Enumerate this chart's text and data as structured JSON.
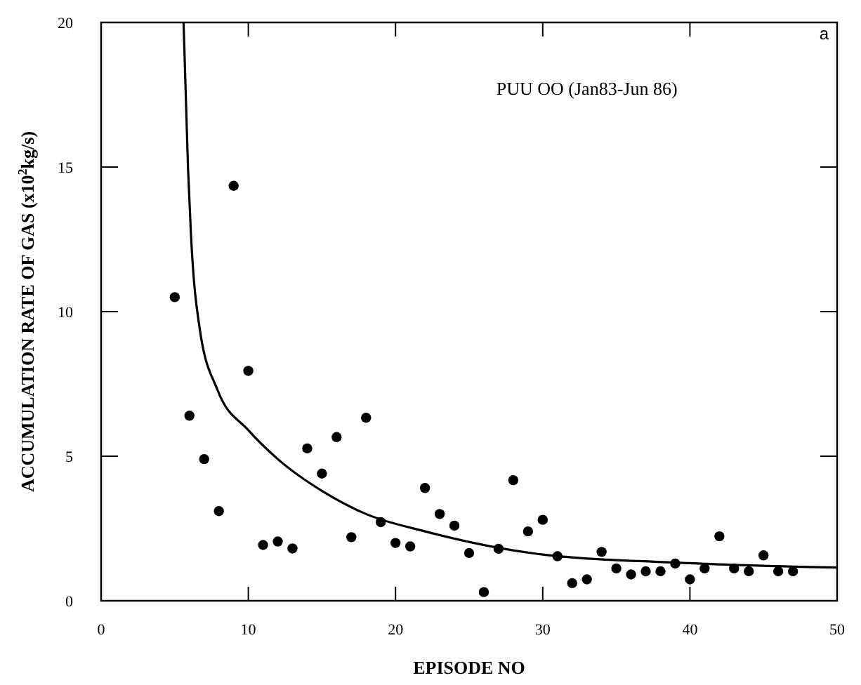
{
  "chart_data": {
    "type": "scatter",
    "xlabel": "EPISODE NO",
    "ylabel": "ACCUMULATION RATE OF GAS (x10$^{2}$kg/s)",
    "annotations": [
      "PUU OO (Jan83-Jun 86)",
      "a"
    ],
    "xlim": [
      0,
      50
    ],
    "xticks": [
      0,
      10,
      20,
      30,
      40,
      50
    ],
    "ylim": [
      0,
      20
    ],
    "yticks": [
      0,
      5,
      10,
      15,
      20
    ],
    "grid": false,
    "marker": "circle",
    "series": [
      {
        "color": "#000000",
        "x": [
          5,
          6,
          7,
          8,
          9,
          10,
          11,
          12,
          13,
          14,
          15,
          16,
          17,
          18,
          19,
          20,
          21,
          22,
          23,
          24,
          25,
          26,
          27,
          28,
          29,
          30,
          31,
          32,
          33,
          34,
          35,
          36,
          37,
          38,
          39,
          40,
          41,
          42,
          43,
          44,
          45,
          46,
          47
        ],
        "values": [
          10.5,
          6.4,
          4.9,
          3.1,
          14.35,
          7.95,
          1.93,
          2.05,
          1.81,
          5.27,
          4.4,
          5.66,
          2.2,
          6.33,
          2.72,
          2.0,
          1.88,
          3.9,
          3.0,
          2.6,
          1.65,
          0.3,
          1.8,
          4.17,
          2.4,
          2.8,
          1.54,
          0.61,
          0.74,
          1.69,
          1.12,
          0.91,
          1.02,
          1.02,
          1.29,
          0.74,
          1.12,
          2.23,
          1.12,
          1.02,
          1.57,
          1.02,
          1.02
        ]
      },
      {
        "type": "line",
        "color": "#000000",
        "line_style": "solid",
        "marker": "none",
        "x": [
          5.6,
          5.9,
          6.1,
          6.7,
          7.9,
          10,
          12,
          15,
          18,
          22,
          30,
          40,
          50
        ],
        "values": [
          20,
          15,
          12.7,
          9.4,
          7.3,
          5.9,
          4.9,
          3.8,
          3.0,
          2.4,
          1.6,
          1.3,
          1.15
        ]
      }
    ]
  }
}
